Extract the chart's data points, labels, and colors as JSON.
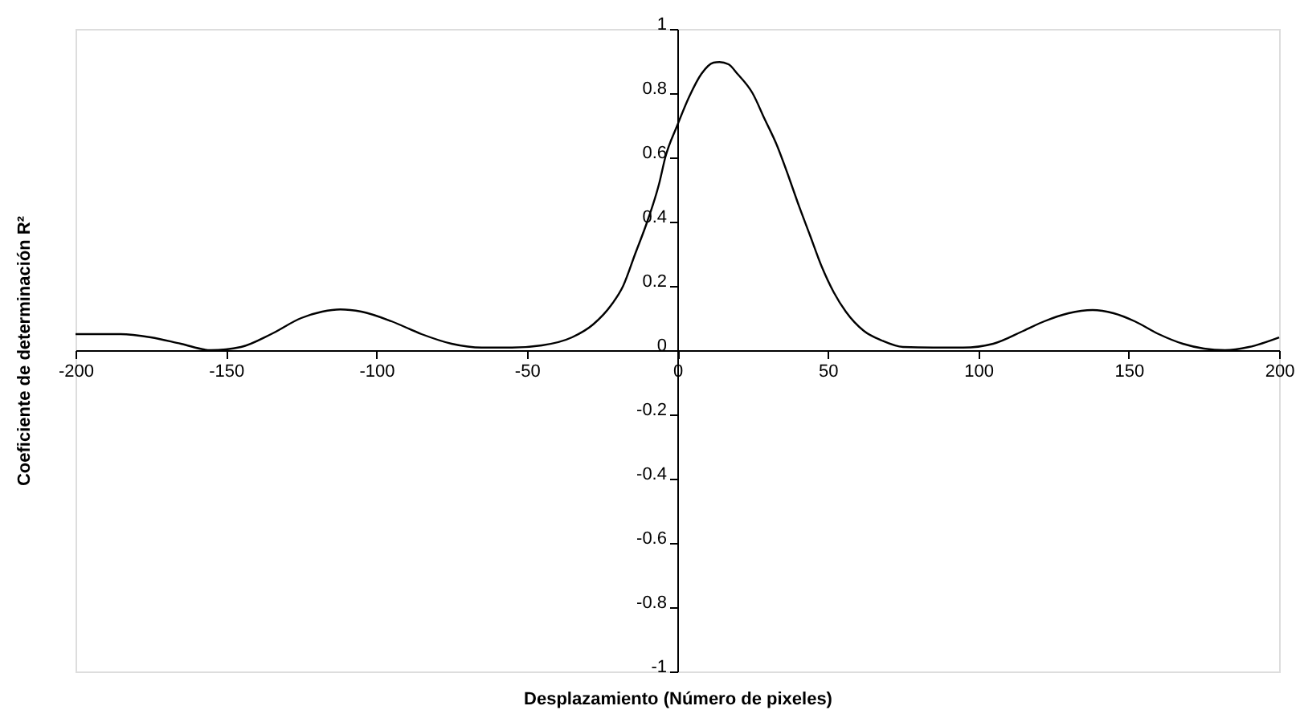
{
  "chart_data": {
    "type": "line",
    "xlabel": "Desplazamiento (Número de pixeles)",
    "ylabel": "Coeficiente de determinación R²",
    "x": [
      -200,
      -185,
      -175,
      -165,
      -155,
      -145,
      -135,
      -125,
      -118,
      -112,
      -105,
      -95,
      -85,
      -75,
      -65,
      -55,
      -45,
      -35,
      -28,
      -22,
      -18,
      -14,
      -10,
      -6,
      -4,
      0,
      4,
      8,
      12,
      14,
      17,
      20,
      25,
      29,
      33,
      37,
      40,
      44,
      48,
      52,
      56,
      62,
      68,
      75,
      85,
      95,
      105,
      115,
      122,
      130,
      138,
      145,
      152,
      160,
      168,
      175,
      182,
      190,
      200
    ],
    "series": [
      {
        "color": "#000000",
        "values": [
          0.05,
          0.05,
          0.04,
          0.02,
          0.0,
          0.01,
          0.05,
          0.1,
          0.12,
          0.127,
          0.12,
          0.09,
          0.05,
          0.02,
          0.008,
          0.008,
          0.015,
          0.04,
          0.08,
          0.14,
          0.2,
          0.3,
          0.4,
          0.52,
          0.6,
          0.7,
          0.79,
          0.86,
          0.895,
          0.897,
          0.89,
          0.86,
          0.8,
          0.72,
          0.64,
          0.54,
          0.46,
          0.36,
          0.26,
          0.18,
          0.12,
          0.06,
          0.03,
          0.01,
          0.008,
          0.008,
          0.02,
          0.06,
          0.09,
          0.115,
          0.125,
          0.115,
          0.09,
          0.05,
          0.02,
          0.005,
          0.0,
          0.01,
          0.04
        ]
      }
    ],
    "xlim": [
      -200,
      200
    ],
    "xticks": [
      -200,
      -150,
      -100,
      -50,
      0,
      50,
      100,
      150,
      200
    ],
    "ylim": [
      -1,
      1
    ],
    "yticks": [
      -1,
      -0.8,
      -0.6,
      -0.4,
      -0.2,
      0,
      0.2,
      0.4,
      0.6,
      0.8,
      1
    ],
    "grid": false,
    "marker": "none",
    "line_style": "solid"
  }
}
